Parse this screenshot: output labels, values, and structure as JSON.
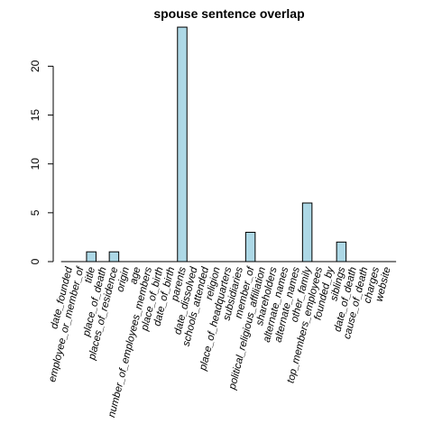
{
  "chart_data": {
    "type": "bar",
    "title": "spouse sentence overlap",
    "xlabel": "",
    "ylabel": "",
    "ylim": [
      0,
      24
    ],
    "yticks": [
      0,
      5,
      10,
      15,
      20
    ],
    "grid": false,
    "legend": "none",
    "bar_color": "#add8e6",
    "bar_border_color": "#000000",
    "categories": [
      "date_founded",
      "employee_or_member_of",
      "title",
      "place_of_death",
      "places_of_residence",
      "origin",
      "age",
      "number_of_employees_members",
      "place_of_birth",
      "date_of_birth",
      "parents",
      "date_dissolved",
      "schools_attended",
      "religion",
      "place_of_headquarters",
      "subsidiaries",
      "member_of",
      "political_religious_affiliation",
      "shareholders",
      "alternate_names",
      "alternate_names",
      "other_family",
      "top_members_employees",
      "founded_by",
      "siblings",
      "date_of_death",
      "cause_of_death",
      "charges",
      "website"
    ],
    "values": [
      0,
      0,
      1,
      0,
      1,
      0,
      0,
      0,
      0,
      0,
      24,
      0,
      0,
      0,
      0,
      0,
      3,
      0,
      0,
      0,
      0,
      6,
      0,
      0,
      2,
      0,
      0,
      0,
      0
    ]
  }
}
